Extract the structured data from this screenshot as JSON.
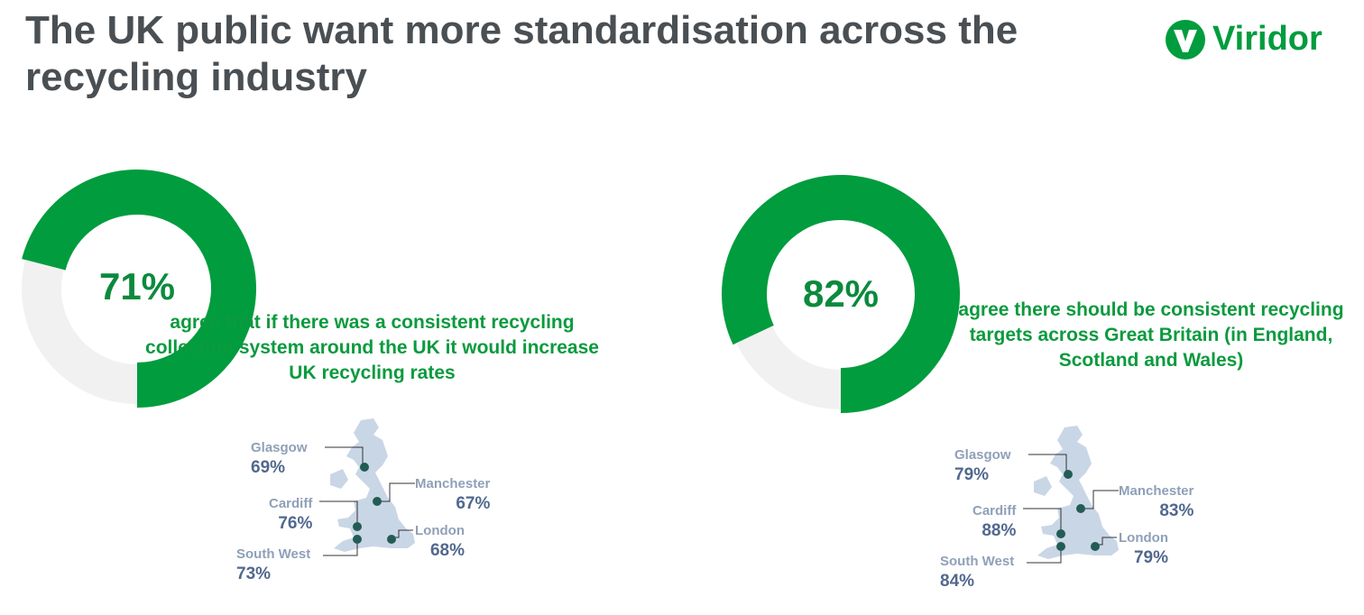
{
  "header": {
    "title": "The UK public want more standardisation across the recycling industry",
    "logo_text": "Viridor"
  },
  "colors": {
    "accent": "#009c3e",
    "remainder": "#f1f1f1",
    "map": "#c9d6e6",
    "dot": "#235c55"
  },
  "chart_data": [
    {
      "type": "pie",
      "title": "",
      "values": [
        71,
        29
      ],
      "center_label": "71%",
      "caption": "agree that if there was a consistent recycling collection system around the UK it would increase UK recycling rates",
      "regions": [
        {
          "name": "Glasgow",
          "value": "69%"
        },
        {
          "name": "Manchester",
          "value": "67%"
        },
        {
          "name": "Cardiff",
          "value": "76%"
        },
        {
          "name": "London",
          "value": "68%"
        },
        {
          "name": "South West",
          "value": "73%"
        }
      ]
    },
    {
      "type": "pie",
      "title": "",
      "values": [
        82,
        18
      ],
      "center_label": "82%",
      "caption": "agree there should be consistent recycling targets across Great Britain (in England, Scotland and Wales)",
      "regions": [
        {
          "name": "Glasgow",
          "value": "79%"
        },
        {
          "name": "Manchester",
          "value": "83%"
        },
        {
          "name": "Cardiff",
          "value": "88%"
        },
        {
          "name": "London",
          "value": "79%"
        },
        {
          "name": "South West",
          "value": "84%"
        }
      ]
    }
  ]
}
